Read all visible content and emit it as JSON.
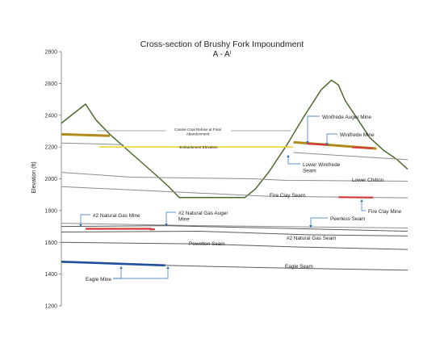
{
  "chart_data": {
    "type": "line",
    "title": "Cross-section of Brushy Fork Impoundment",
    "subtitle": "A - A",
    "subtitle_superscript": "I",
    "ylabel": "Elevation (ft)",
    "xlabel": "",
    "ylim": [
      1200,
      2800
    ],
    "yticks": [
      1200,
      1400,
      1600,
      1800,
      2000,
      2200,
      2400,
      2600,
      2800
    ],
    "xlim": [
      0,
      100
    ],
    "grid": false,
    "colors": {
      "surface": "#4e6b2f",
      "coal_refuse": "#b28a1a",
      "embankment": "#f2d42c",
      "seam": "#8c8c8c",
      "lower_seam": "#5a5a5a",
      "eagle_seam": "#1f4e9a",
      "mine_mark": "#d23a3a",
      "leader": "#2e6fb8"
    },
    "series": [
      {
        "name": "",
        "role": "ground-surface",
        "points": [
          [
            0,
            2350
          ],
          [
            7,
            2470
          ],
          [
            10,
            2370
          ],
          [
            14,
            2280
          ],
          [
            21,
            2145
          ],
          [
            28,
            2010
          ],
          [
            31,
            1950
          ],
          [
            34,
            1882
          ],
          [
            44,
            1882
          ],
          [
            53,
            1882
          ],
          [
            56,
            1935
          ],
          [
            60,
            2045
          ],
          [
            65,
            2210
          ],
          [
            70,
            2390
          ],
          [
            75,
            2560
          ],
          [
            78,
            2620
          ],
          [
            80,
            2590
          ],
          [
            82,
            2490
          ],
          [
            86,
            2360
          ],
          [
            89,
            2260
          ],
          [
            93,
            2180
          ],
          [
            97,
            2120
          ],
          [
            100,
            2060
          ]
        ]
      },
      {
        "name": "Coarse Coal Refuse at Final Abandonment",
        "role": "refuse-level",
        "segments": [
          [
            [
              0,
              2280
            ],
            [
              14,
              2270
            ]
          ],
          [
            [
              67,
              2230
            ],
            [
              91,
              2190
            ]
          ]
        ]
      },
      {
        "name": "Embankment Elevation",
        "points": [
          [
            11,
            2200
          ],
          [
            67,
            2200
          ]
        ]
      },
      {
        "name": "",
        "role": "upper-seam",
        "points": [
          [
            0,
            2225
          ],
          [
            18,
            2215
          ]
        ]
      },
      {
        "name": "Lower Winifrede Seam",
        "points": [
          [
            67,
            2165
          ],
          [
            100,
            2120
          ]
        ]
      },
      {
        "name": "Lower Chilton",
        "points": [
          [
            0,
            2040
          ],
          [
            20,
            2010
          ],
          [
            55,
            2000
          ],
          [
            65,
            1990
          ],
          [
            100,
            1985
          ]
        ]
      },
      {
        "name": "Fire Clay Seam",
        "points": [
          [
            0,
            1950
          ],
          [
            20,
            1930
          ],
          [
            60,
            1890
          ],
          [
            100,
            1880
          ]
        ]
      },
      {
        "name": "",
        "role": "seam",
        "points": [
          [
            0,
            1720
          ],
          [
            40,
            1705
          ],
          [
            100,
            1690
          ]
        ]
      },
      {
        "name": "Peerless Seam",
        "points": [
          [
            0,
            1700
          ],
          [
            30,
            1705
          ],
          [
            60,
            1690
          ],
          [
            100,
            1670
          ]
        ]
      },
      {
        "name": "#2 Natural Gas Seam",
        "points": [
          [
            0,
            1665
          ],
          [
            40,
            1670
          ],
          [
            70,
            1648
          ],
          [
            100,
            1640
          ]
        ]
      },
      {
        "name": "Powelton Seam",
        "points": [
          [
            0,
            1600
          ],
          [
            40,
            1590
          ],
          [
            70,
            1570
          ],
          [
            100,
            1555
          ]
        ]
      },
      {
        "name": "Eagle Seam",
        "points": [
          [
            0,
            1480
          ],
          [
            30,
            1455
          ],
          [
            60,
            1440
          ],
          [
            100,
            1425
          ]
        ]
      }
    ],
    "mine_marks": [
      {
        "name": "#2 Natural Gas Mine",
        "x": [
          7,
          26
        ],
        "y": [
          1685,
          1685
        ]
      },
      {
        "name": "#2 Natural Gas Auger Mine",
        "x": [
          25.5,
          27
        ],
        "y": [
          1682,
          1682
        ]
      },
      {
        "name": "Winifrede Auger Mine",
        "x": [
          71,
          77
        ],
        "y": [
          2220,
          2214
        ]
      },
      {
        "name": "Winifrede Mine",
        "x": [
          84,
          90
        ],
        "y": [
          2198,
          2192
        ]
      },
      {
        "name": "Fire Clay Mine",
        "x": [
          80,
          90
        ],
        "y": [
          1884,
          1882
        ]
      },
      {
        "name": "Eagle Mine",
        "x": [
          0,
          30
        ],
        "y": [
          1478,
          1455
        ]
      }
    ],
    "annotations": [
      {
        "id": "coal-refuse",
        "lines": [
          "Coarse Coal Refuse at Final",
          "Abandonment"
        ]
      },
      {
        "id": "embankment",
        "lines": [
          "Embankment Elevation"
        ]
      },
      {
        "id": "winifrede-auger",
        "lines": [
          "Winifrede Auger Mine"
        ]
      },
      {
        "id": "winifrede-mine",
        "lines": [
          "Winifrede Mine"
        ]
      },
      {
        "id": "lower-winifrede",
        "lines": [
          "Lower Winifrede",
          "Seam"
        ]
      },
      {
        "id": "lower-chilton",
        "lines": [
          "Lower Chilton"
        ]
      },
      {
        "id": "fire-clay-seam",
        "lines": [
          "Fire Clay Seam"
        ]
      },
      {
        "id": "fire-clay-mine",
        "lines": [
          "Fire Clay Mine"
        ]
      },
      {
        "id": "ng-mine",
        "lines": [
          "#2 Natural Gas Mine"
        ]
      },
      {
        "id": "ng-auger",
        "lines": [
          "#2 Natural Gas Auger",
          "Mine"
        ]
      },
      {
        "id": "peerless",
        "lines": [
          "Peerless Seam"
        ]
      },
      {
        "id": "ng-seam",
        "lines": [
          "#2 Natural Gas Seam"
        ]
      },
      {
        "id": "powelton",
        "lines": [
          "Powelton Seam"
        ]
      },
      {
        "id": "eagle-seam",
        "lines": [
          "Eagle Seam"
        ]
      },
      {
        "id": "eagle-mine",
        "lines": [
          "Eagle Mine"
        ]
      }
    ]
  }
}
